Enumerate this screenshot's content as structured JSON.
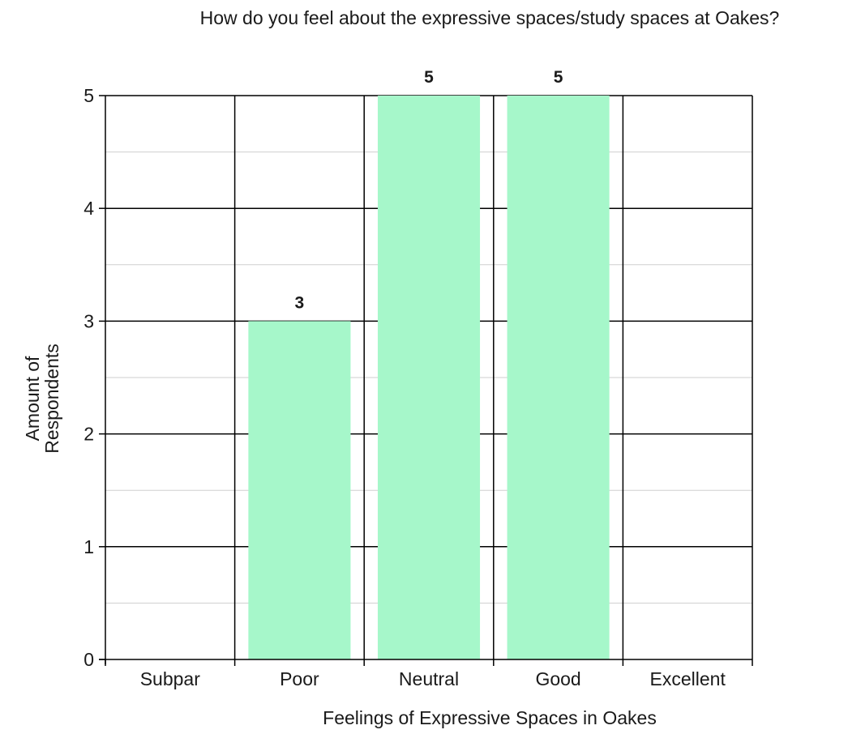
{
  "chart_data": {
    "type": "bar",
    "title": "How do you feel about the expressive spaces/study spaces at Oakes?",
    "xlabel": "Feelings of Expressive Spaces in Oakes",
    "ylabel_lines": [
      "Amount of",
      "Respondents"
    ],
    "categories": [
      "Subpar",
      "Poor",
      "Neutral",
      "Good",
      "Excellent"
    ],
    "values": [
      0,
      3,
      5,
      5,
      0
    ],
    "data_labels": [
      "",
      "3",
      "5",
      "5",
      ""
    ],
    "ylim": [
      0,
      5
    ],
    "yticks": [
      0,
      1,
      2,
      3,
      4,
      5
    ],
    "grid": true,
    "legend": "none",
    "colors": {
      "bar": "#a6f7ca",
      "gridline_major": "#000000",
      "gridline_minor": "#cfcfcf",
      "text": "#1a1a1a"
    }
  }
}
